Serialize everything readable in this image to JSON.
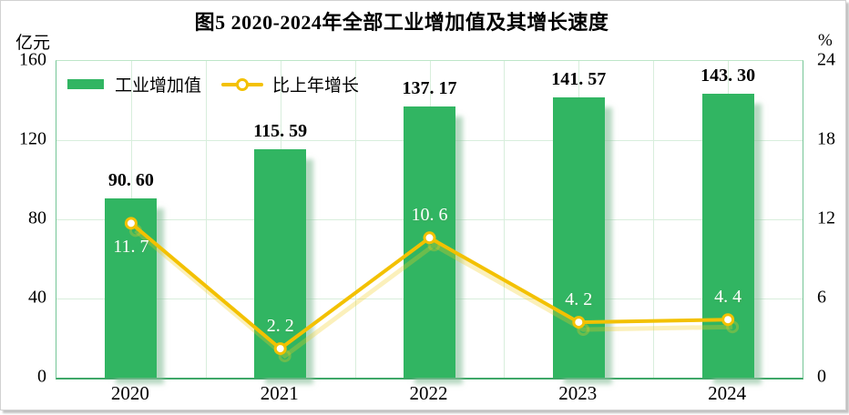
{
  "figure": {
    "title": "图5 2020-2024年全部工业增加值及其增长速度",
    "left_axis_unit": "亿元",
    "right_axis_unit": "%"
  },
  "legend": {
    "items": [
      {
        "label": "工业增加值",
        "marker": "green-bar-swatch"
      },
      {
        "label": "比上年增长",
        "marker": "yellow-line-circle-marker"
      }
    ]
  },
  "chart_data": {
    "type": "bar+line",
    "title": "图5 2020-2024年全部工业增加值及其增长速度",
    "categories": [
      "2020",
      "2021",
      "2022",
      "2023",
      "2024"
    ],
    "series": [
      {
        "name": "工业增加值",
        "chart": "bar",
        "axis": "left",
        "unit": "亿元",
        "values": [
          90.6,
          115.59,
          137.17,
          141.57,
          143.3
        ],
        "labels": [
          "90. 60",
          "115. 59",
          "137. 17",
          "141. 57",
          "143. 30"
        ],
        "color": "#31b562"
      },
      {
        "name": "比上年增长",
        "chart": "line",
        "axis": "right",
        "unit": "%",
        "values": [
          11.7,
          2.2,
          10.6,
          4.2,
          4.4
        ],
        "labels": [
          "11. 7",
          "2. 2",
          "10. 6",
          "4. 2",
          "4. 4"
        ],
        "label_placement": [
          "below",
          "above",
          "above",
          "above",
          "above"
        ],
        "color": "#f3c100"
      }
    ],
    "left_axis": {
      "unit": "亿元",
      "min": 0,
      "max": 160,
      "ticks": [
        "0",
        "40",
        "80",
        "120",
        "160"
      ]
    },
    "right_axis": {
      "unit": "%",
      "min": 0,
      "max": 24,
      "ticks": [
        "0",
        "6",
        "12",
        "18",
        "24"
      ]
    },
    "grid": {
      "horizontal_lines_at": [
        40,
        80,
        120
      ],
      "vertical_divisions": 10,
      "color": "#d8eedc"
    },
    "legend_position": "top-left-inside-plot"
  },
  "colors": {
    "bar": "#31b562",
    "bar_shadow": "rgba(134,190,152,0.6)",
    "line": "#f3c100",
    "line_label_text": "#ffffff",
    "grid": "#d8eedc",
    "axis_bottom": "#3fa868",
    "axis_side": "#74c596",
    "text": "#000000",
    "figure_border": "#d2d2d2"
  }
}
